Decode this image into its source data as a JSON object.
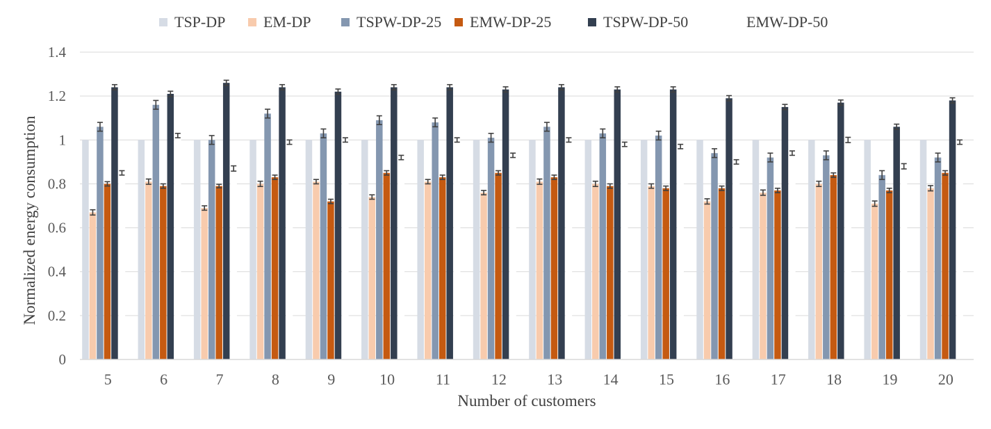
{
  "chart_data": {
    "type": "bar",
    "xlabel": "Number of customers",
    "ylabel": "Normalized energy consumption",
    "ylim": [
      0,
      1.4
    ],
    "yticks": [
      "0",
      "0.2",
      "0.4",
      "0.6",
      "0.8",
      "1",
      "1.2",
      "1.4"
    ],
    "ytick_values": [
      0,
      0.2,
      0.4,
      0.6,
      0.8,
      1.0,
      1.2,
      1.4
    ],
    "grid": "horizontal",
    "legend_position": "top",
    "categories": [
      "5",
      "6",
      "7",
      "8",
      "9",
      "10",
      "11",
      "12",
      "13",
      "14",
      "15",
      "16",
      "17",
      "18",
      "19",
      "20"
    ],
    "series": [
      {
        "name": "TSP-DP",
        "color": "#D6DCE5",
        "values": [
          1,
          1,
          1,
          1,
          1,
          1,
          1,
          1,
          1,
          1,
          1,
          1,
          1,
          1,
          1,
          1
        ],
        "errors": [
          0,
          0,
          0,
          0,
          0,
          0,
          0,
          0,
          0,
          0,
          0,
          0,
          0,
          0,
          0,
          0
        ]
      },
      {
        "name": "EM-DP",
        "color": "#F8CBAD",
        "values": [
          0.67,
          0.81,
          0.69,
          0.8,
          0.81,
          0.74,
          0.81,
          0.76,
          0.81,
          0.8,
          0.79,
          0.72,
          0.76,
          0.8,
          0.71,
          0.78
        ],
        "errors": [
          0.012,
          0.012,
          0.01,
          0.012,
          0.01,
          0.01,
          0.01,
          0.01,
          0.012,
          0.012,
          0.01,
          0.012,
          0.012,
          0.012,
          0.012,
          0.012
        ]
      },
      {
        "name": "TSPW-DP-25",
        "color": "#8497B0",
        "values": [
          1.06,
          1.16,
          1.0,
          1.12,
          1.03,
          1.09,
          1.08,
          1.01,
          1.06,
          1.03,
          1.02,
          0.94,
          0.92,
          0.93,
          0.84,
          0.92
        ],
        "errors": [
          0.02,
          0.02,
          0.02,
          0.02,
          0.02,
          0.02,
          0.02,
          0.02,
          0.02,
          0.02,
          0.02,
          0.02,
          0.02,
          0.02,
          0.02,
          0.02
        ]
      },
      {
        "name": "EMW-DP-25",
        "color": "#C55A11",
        "values": [
          0.8,
          0.79,
          0.79,
          0.83,
          0.72,
          0.85,
          0.83,
          0.85,
          0.83,
          0.79,
          0.78,
          0.78,
          0.77,
          0.84,
          0.77,
          0.85
        ],
        "errors": [
          0.01,
          0.01,
          0.008,
          0.01,
          0.01,
          0.01,
          0.01,
          0.01,
          0.01,
          0.01,
          0.01,
          0.01,
          0.01,
          0.01,
          0.01,
          0.01
        ]
      },
      {
        "name": "TSPW-DP-50",
        "color": "#333F50",
        "values": [
          1.24,
          1.21,
          1.26,
          1.24,
          1.22,
          1.24,
          1.24,
          1.23,
          1.24,
          1.23,
          1.23,
          1.19,
          1.15,
          1.17,
          1.06,
          1.18
        ],
        "errors": [
          0.012,
          0.012,
          0.012,
          0.012,
          0.012,
          0.012,
          0.012,
          0.012,
          0.012,
          0.012,
          0.012,
          0.012,
          0.012,
          0.012,
          0.012,
          0.012
        ]
      },
      {
        "name": "EMW-DP-50",
        "color": "#FFFFFF",
        "values": [
          0.85,
          1.02,
          0.87,
          0.99,
          1.0,
          0.92,
          1.0,
          0.93,
          1.0,
          0.98,
          0.97,
          0.9,
          0.94,
          1.0,
          0.88,
          0.99
        ],
        "errors": [
          0.01,
          0.01,
          0.012,
          0.01,
          0.01,
          0.01,
          0.01,
          0.01,
          0.01,
          0.01,
          0.01,
          0.01,
          0.01,
          0.012,
          0.012,
          0.01
        ]
      }
    ]
  }
}
